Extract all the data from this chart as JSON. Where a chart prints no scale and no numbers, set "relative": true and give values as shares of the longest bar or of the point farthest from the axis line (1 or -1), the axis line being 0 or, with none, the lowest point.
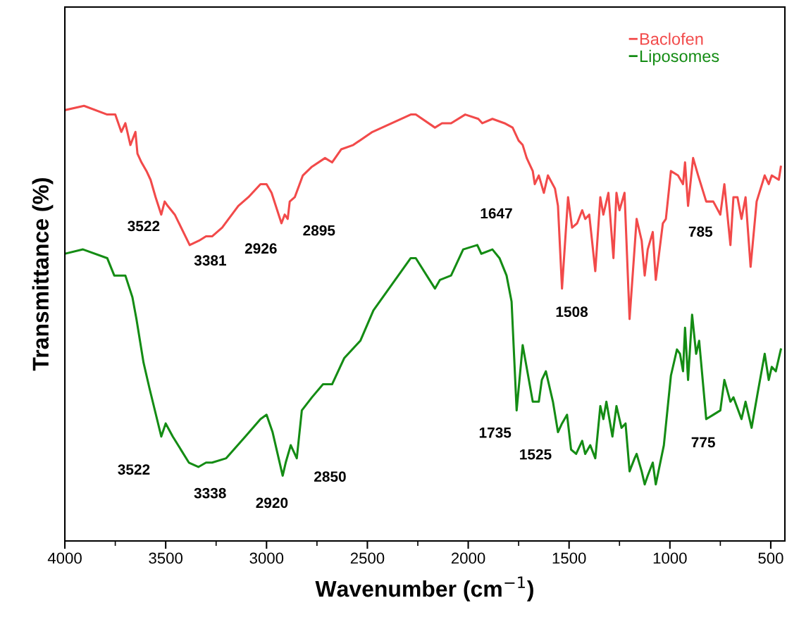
{
  "chart_data": {
    "type": "line",
    "relative": true,
    "xlabel": "Wavenumber (cm$^{−1}$)",
    "ylabel": "Transmittance (%)",
    "xlim": [
      4000,
      430
    ],
    "xticks": [
      4000,
      3500,
      3000,
      2500,
      2000,
      1500,
      1000,
      500
    ],
    "tick_labels": "x",
    "legend": "top right",
    "series": [
      {
        "name": "Baclofen",
        "color": "#f24a4a",
        "x": [
          4000,
          3905,
          3790,
          3750,
          3720,
          3700,
          3675,
          3650,
          3640,
          3620,
          3595,
          3575,
          3550,
          3522,
          3505,
          3490,
          3455,
          3381,
          3335,
          3300,
          3270,
          3220,
          3140,
          3090,
          3030,
          3000,
          2975,
          2926,
          2910,
          2895,
          2885,
          2860,
          2820,
          2775,
          2710,
          2675,
          2630,
          2570,
          2475,
          2285,
          2260,
          2165,
          2130,
          2085,
          2015,
          1950,
          1930,
          1880,
          1820,
          1780,
          1750,
          1730,
          1710,
          1680,
          1670,
          1650,
          1625,
          1605,
          1570,
          1555,
          1535,
          1505,
          1485,
          1460,
          1435,
          1420,
          1400,
          1370,
          1345,
          1330,
          1305,
          1280,
          1265,
          1250,
          1225,
          1200,
          1165,
          1140,
          1125,
          1110,
          1085,
          1070,
          1035,
          1020,
          995,
          960,
          935,
          925,
          910,
          885,
          860,
          820,
          785,
          750,
          730,
          700,
          685,
          665,
          645,
          625,
          600,
          570,
          530,
          510,
          495,
          460,
          450
        ],
        "values": [
          0.99,
          1.0,
          0.98,
          0.98,
          0.94,
          0.96,
          0.91,
          0.94,
          0.89,
          0.87,
          0.85,
          0.83,
          0.79,
          0.75,
          0.78,
          0.77,
          0.75,
          0.68,
          0.69,
          0.7,
          0.7,
          0.72,
          0.77,
          0.79,
          0.82,
          0.82,
          0.8,
          0.73,
          0.75,
          0.74,
          0.78,
          0.79,
          0.84,
          0.86,
          0.88,
          0.87,
          0.9,
          0.91,
          0.94,
          0.98,
          0.98,
          0.95,
          0.96,
          0.96,
          0.98,
          0.97,
          0.96,
          0.97,
          0.96,
          0.95,
          0.92,
          0.91,
          0.88,
          0.85,
          0.82,
          0.84,
          0.8,
          0.84,
          0.81,
          0.77,
          0.58,
          0.79,
          0.72,
          0.73,
          0.76,
          0.74,
          0.75,
          0.62,
          0.79,
          0.75,
          0.8,
          0.65,
          0.8,
          0.76,
          0.8,
          0.51,
          0.74,
          0.69,
          0.61,
          0.67,
          0.71,
          0.6,
          0.73,
          0.74,
          0.85,
          0.84,
          0.82,
          0.87,
          0.77,
          0.88,
          0.84,
          0.78,
          0.78,
          0.75,
          0.82,
          0.68,
          0.79,
          0.79,
          0.74,
          0.79,
          0.63,
          0.78,
          0.84,
          0.82,
          0.84,
          0.83,
          0.86
        ]
      },
      {
        "name": "Liposomes",
        "color": "#148c14",
        "x": [
          4000,
          3910,
          3790,
          3755,
          3700,
          3665,
          3645,
          3610,
          3580,
          3522,
          3500,
          3465,
          3385,
          3338,
          3300,
          3270,
          3200,
          3105,
          3030,
          3000,
          2970,
          2920,
          2905,
          2880,
          2850,
          2825,
          2775,
          2720,
          2675,
          2615,
          2535,
          2470,
          2285,
          2260,
          2165,
          2140,
          2085,
          2025,
          1955,
          1935,
          1880,
          1845,
          1810,
          1785,
          1760,
          1730,
          1680,
          1650,
          1635,
          1615,
          1580,
          1555,
          1535,
          1510,
          1490,
          1465,
          1435,
          1420,
          1395,
          1370,
          1345,
          1330,
          1315,
          1285,
          1265,
          1240,
          1220,
          1200,
          1175,
          1165,
          1140,
          1125,
          1110,
          1085,
          1070,
          1030,
          995,
          965,
          950,
          935,
          925,
          910,
          890,
          870,
          855,
          820,
          785,
          750,
          730,
          700,
          685,
          645,
          625,
          595,
          565,
          530,
          510,
          495,
          475,
          450
        ],
        "values": [
          0.66,
          0.67,
          0.65,
          0.61,
          0.61,
          0.56,
          0.51,
          0.41,
          0.35,
          0.24,
          0.27,
          0.24,
          0.18,
          0.17,
          0.18,
          0.18,
          0.19,
          0.24,
          0.28,
          0.29,
          0.25,
          0.15,
          0.18,
          0.22,
          0.19,
          0.3,
          0.33,
          0.36,
          0.36,
          0.42,
          0.46,
          0.53,
          0.65,
          0.65,
          0.58,
          0.6,
          0.61,
          0.67,
          0.68,
          0.66,
          0.67,
          0.65,
          0.61,
          0.55,
          0.3,
          0.45,
          0.32,
          0.32,
          0.37,
          0.39,
          0.32,
          0.25,
          0.27,
          0.29,
          0.21,
          0.2,
          0.23,
          0.2,
          0.22,
          0.19,
          0.31,
          0.28,
          0.32,
          0.24,
          0.31,
          0.26,
          0.27,
          0.16,
          0.19,
          0.2,
          0.16,
          0.13,
          0.15,
          0.18,
          0.13,
          0.22,
          0.38,
          0.44,
          0.43,
          0.39,
          0.49,
          0.37,
          0.52,
          0.43,
          0.46,
          0.28,
          0.29,
          0.3,
          0.37,
          0.32,
          0.33,
          0.28,
          0.32,
          0.26,
          0.34,
          0.43,
          0.37,
          0.4,
          0.39,
          0.44
        ]
      }
    ],
    "annotations": [
      {
        "text": "3522",
        "x": 3522,
        "y": 0.75
      },
      {
        "text": "3381",
        "x": 3381,
        "y": 0.68
      },
      {
        "text": "2926",
        "x": 2926,
        "y": 0.73
      },
      {
        "text": "2895",
        "x": 2895,
        "y": 0.74
      },
      {
        "text": "1647",
        "x": 1647,
        "y": 0.84
      },
      {
        "text": "1508",
        "x": 1535,
        "y": 0.58
      },
      {
        "text": "785",
        "x": 785,
        "y": 0.78
      },
      {
        "text": "3522",
        "x": 3522,
        "y": 0.24
      },
      {
        "text": "3338",
        "x": 3338,
        "y": 0.17
      },
      {
        "text": "2920",
        "x": 2920,
        "y": 0.15
      },
      {
        "text": "2850",
        "x": 2850,
        "y": 0.19
      },
      {
        "text": "1735",
        "x": 1760,
        "y": 0.3
      },
      {
        "text": "1525",
        "x": 1555,
        "y": 0.25
      },
      {
        "text": "775",
        "x": 820,
        "y": 0.28
      }
    ]
  }
}
